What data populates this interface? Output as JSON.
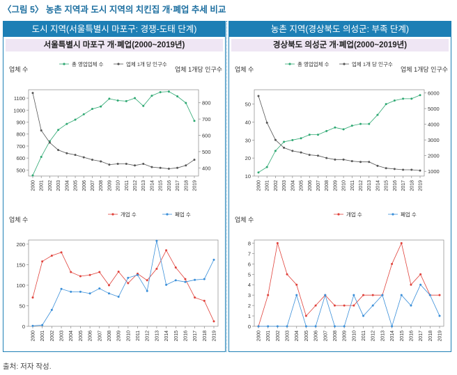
{
  "figure_title": "〈그림 5〉 농촌 지역과 도시 지역의 치킨집 개·폐업 추세 비교",
  "source": "출처: 저자 작성.",
  "panels": [
    {
      "header": "도시 지역(서울특별시 마포구: 경쟁-도태 단계)",
      "subheader": "서울특별시 마포구 개·폐업(2000~2019년)"
    },
    {
      "header": "농촌 지역(경상북도 의성군: 부족 단계)",
      "subheader": "경상북도 의성군 개·폐업(2000~2019년)"
    }
  ],
  "colors": {
    "accent": "#1d7fb5",
    "sub_bg": "#efe6f4",
    "green": "#2ea872",
    "dark": "#555555",
    "red": "#e0413a",
    "blue": "#3a8fd9"
  },
  "chart_data": [
    {
      "type": "line",
      "panel": "left-top",
      "x": [
        "2000",
        "2001",
        "2002",
        "2003",
        "2004",
        "2005",
        "2006",
        "2007",
        "2008",
        "2009",
        "2010",
        "2011",
        "2012",
        "2013",
        "2014",
        "2015",
        "2016",
        "2017",
        "2018",
        "2019"
      ],
      "ylabel": "업체 수",
      "y2label": "업체 1개당 인구수",
      "ylim": [
        450,
        1170
      ],
      "yticks": [
        500,
        600,
        700,
        800,
        900,
        1000,
        1100
      ],
      "y2lim": [
        350,
        880
      ],
      "y2ticks": [
        400,
        500,
        600,
        700,
        800
      ],
      "legend_position": "top",
      "series": [
        {
          "name": "총 영업업체 수",
          "axis": "left",
          "color": "#2ea872",
          "values": [
            455,
            610,
            740,
            835,
            885,
            920,
            965,
            1010,
            1030,
            1095,
            1080,
            1075,
            1100,
            1035,
            1120,
            1150,
            1155,
            1115,
            1060,
            910
          ]
        },
        {
          "name": "업체 1개 당 인구수",
          "axis": "right",
          "color": "#555555",
          "values": [
            860,
            630,
            555,
            510,
            490,
            480,
            465,
            450,
            440,
            420,
            425,
            425,
            415,
            425,
            405,
            400,
            395,
            400,
            415,
            450
          ]
        }
      ]
    },
    {
      "type": "line",
      "panel": "left-bottom",
      "x": [
        "2000",
        "2001",
        "2002",
        "2003",
        "2004",
        "2005",
        "2006",
        "2007",
        "2008",
        "2009",
        "2010",
        "2011",
        "2012",
        "2013",
        "2014",
        "2015",
        "2016",
        "2017",
        "2018",
        "2019"
      ],
      "ylabel": "업체 수",
      "ylim": [
        0,
        210
      ],
      "yticks": [
        0,
        50,
        100,
        150,
        200
      ],
      "legend_position": "top",
      "series": [
        {
          "name": "개업 수",
          "color": "#e0413a",
          "values": [
            70,
            158,
            172,
            180,
            132,
            122,
            125,
            132,
            100,
            133,
            105,
            128,
            112,
            140,
            185,
            143,
            115,
            70,
            62,
            12
          ]
        },
        {
          "name": "폐업 수",
          "color": "#3a8fd9",
          "values": [
            1,
            3,
            40,
            91,
            84,
            84,
            80,
            92,
            80,
            72,
            118,
            125,
            86,
            208,
            101,
            112,
            108,
            113,
            115,
            162
          ]
        }
      ]
    },
    {
      "type": "line",
      "panel": "right-top",
      "x": [
        "2000",
        "2001",
        "2002",
        "2003",
        "2004",
        "2005",
        "2006",
        "2007",
        "2008",
        "2009",
        "2010",
        "2011",
        "2012",
        "2013",
        "2014",
        "2015",
        "2016",
        "2017",
        "2018",
        "2019"
      ],
      "ylabel": "업체 수",
      "y2label": "업체 1개당 인구수",
      "ylim": [
        10,
        58
      ],
      "yticks": [
        10,
        20,
        30,
        40,
        50
      ],
      "y2lim": [
        700,
        6200
      ],
      "y2ticks": [
        1000,
        2000,
        3000,
        4000,
        5000,
        6000
      ],
      "legend_position": "top",
      "series": [
        {
          "name": "총 영업업체 수",
          "axis": "left",
          "color": "#2ea872",
          "values": [
            12,
            15,
            24,
            29,
            30,
            31,
            33,
            33,
            35,
            37,
            36,
            38,
            39,
            39,
            44,
            50,
            52,
            53,
            53,
            55
          ]
        },
        {
          "name": "업체 1개 당 인구수",
          "axis": "right",
          "color": "#555555",
          "values": [
            5800,
            4100,
            3000,
            2500,
            2300,
            2200,
            2050,
            2000,
            1850,
            1750,
            1750,
            1650,
            1600,
            1600,
            1350,
            1200,
            1150,
            1100,
            1100,
            1050
          ]
        }
      ]
    },
    {
      "type": "line",
      "panel": "right-bottom",
      "x": [
        "2000",
        "2001",
        "2002",
        "2003",
        "2004",
        "2005",
        "2006",
        "2007",
        "2008",
        "2009",
        "2010",
        "2011",
        "2012",
        "2013",
        "2014",
        "2015",
        "2016",
        "2017",
        "2018",
        "2019"
      ],
      "ylabel": "업체 수",
      "ylim": [
        0,
        8.3
      ],
      "yticks": [
        0,
        1,
        2,
        3,
        4,
        5,
        6,
        7,
        8
      ],
      "legend_position": "top",
      "series": [
        {
          "name": "개업 수",
          "color": "#e0413a",
          "values": [
            0,
            3,
            8,
            5,
            4,
            1,
            2,
            3,
            2,
            2,
            2,
            3,
            3,
            3,
            6,
            8,
            4,
            5,
            3,
            3
          ]
        },
        {
          "name": "폐업 수",
          "color": "#3a8fd9",
          "values": [
            0,
            0,
            0,
            0,
            3,
            0,
            0,
            3,
            0,
            0,
            3,
            1,
            2,
            3,
            0,
            3,
            2,
            4,
            3,
            1
          ]
        }
      ]
    }
  ]
}
